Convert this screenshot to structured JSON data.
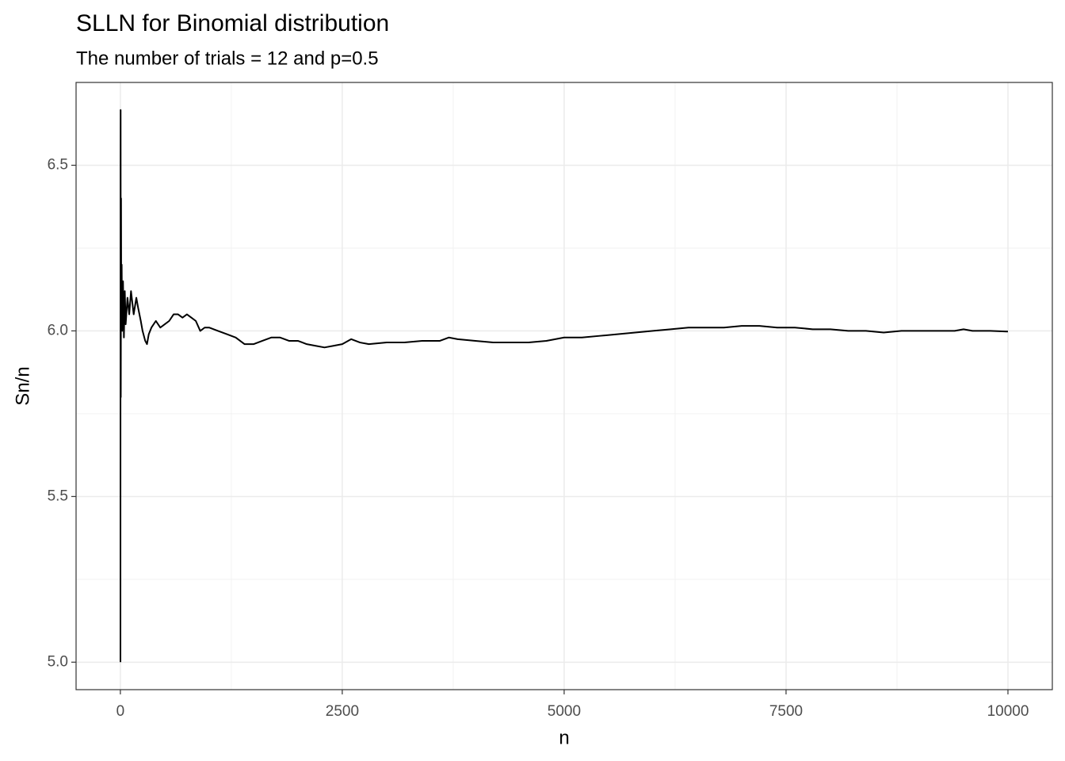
{
  "chart_data": {
    "type": "line",
    "title": "SLLN for Binomial distribution",
    "subtitle": "The number of trials = 12 and p=0.5",
    "x_label": "n",
    "y_label": "Sn/n",
    "x": [
      1,
      2,
      3,
      5,
      8,
      10,
      15,
      20,
      30,
      40,
      50,
      60,
      80,
      100,
      120,
      150,
      180,
      200,
      230,
      250,
      280,
      300,
      320,
      350,
      400,
      450,
      500,
      550,
      600,
      650,
      700,
      750,
      800,
      850,
      900,
      950,
      1000,
      1100,
      1200,
      1300,
      1400,
      1500,
      1600,
      1700,
      1800,
      1900,
      2000,
      2100,
      2200,
      2300,
      2400,
      2500,
      2600,
      2700,
      2800,
      3000,
      3200,
      3400,
      3600,
      3700,
      3800,
      4000,
      4200,
      4400,
      4600,
      4800,
      5000,
      5200,
      5400,
      5600,
      5800,
      6000,
      6200,
      6400,
      6600,
      6800,
      7000,
      7200,
      7400,
      7600,
      7800,
      8000,
      8200,
      8400,
      8600,
      8800,
      9000,
      9200,
      9400,
      9500,
      9600,
      9800,
      10000
    ],
    "values": [
      5.0,
      6.5,
      6.667,
      5.8,
      6.4,
      6.1,
      6.2,
      6.0,
      6.15,
      5.98,
      6.12,
      6.02,
      6.1,
      6.05,
      6.12,
      6.05,
      6.1,
      6.07,
      6.03,
      6.0,
      5.97,
      5.96,
      5.99,
      6.01,
      6.03,
      6.01,
      6.02,
      6.03,
      6.05,
      6.05,
      6.04,
      6.05,
      6.04,
      6.03,
      6.0,
      6.01,
      6.01,
      6.0,
      5.99,
      5.98,
      5.96,
      5.96,
      5.97,
      5.98,
      5.98,
      5.97,
      5.97,
      5.96,
      5.955,
      5.95,
      5.955,
      5.96,
      5.975,
      5.965,
      5.96,
      5.965,
      5.965,
      5.97,
      5.97,
      5.98,
      5.975,
      5.97,
      5.965,
      5.965,
      5.965,
      5.97,
      5.98,
      5.98,
      5.985,
      5.99,
      5.995,
      6.0,
      6.005,
      6.01,
      6.01,
      6.01,
      6.015,
      6.015,
      6.01,
      6.01,
      6.005,
      6.005,
      6.0,
      6.0,
      5.995,
      6.0,
      6.0,
      6.0,
      6.0,
      6.005,
      6.0,
      6.0,
      5.998
    ],
    "color": "#000000",
    "xlim": [
      -499,
      10500
    ],
    "ylim": [
      4.917,
      6.75
    ],
    "xticks": [
      0,
      2500,
      5000,
      7500,
      10000
    ],
    "yticks": [
      {
        "value": 5,
        "label": "5.0"
      },
      5.5,
      {
        "value": 6,
        "label": "6.0"
      },
      6.5
    ],
    "minor_xticks": [
      1250,
      3750,
      6250,
      8750
    ],
    "minor_yticks": [
      5.25,
      5.75,
      6.25
    ],
    "grid": true
  }
}
